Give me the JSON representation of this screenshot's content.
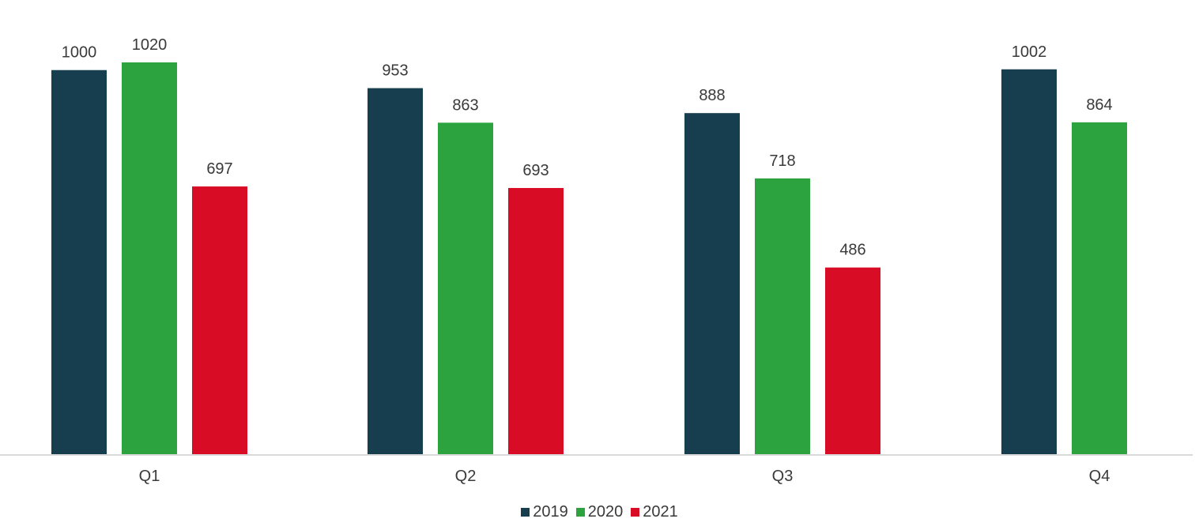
{
  "chart_data": {
    "type": "bar",
    "title": "",
    "xlabel": "",
    "ylabel": "",
    "categories": [
      "Q1",
      "Q2",
      "Q3",
      "Q4"
    ],
    "series": [
      {
        "name": "2019",
        "color": "#173e4f",
        "values": [
          1000,
          953,
          888,
          1002
        ]
      },
      {
        "name": "2020",
        "color": "#2ca33e",
        "values": [
          1020,
          863,
          718,
          864
        ]
      },
      {
        "name": "2021",
        "color": "#d90c25",
        "values": [
          697,
          693,
          486,
          null
        ]
      }
    ],
    "ylim": [
      0,
      1020
    ],
    "grid": false,
    "legend_position": "bottom-center",
    "baseline_color": "#d9d9d9"
  }
}
